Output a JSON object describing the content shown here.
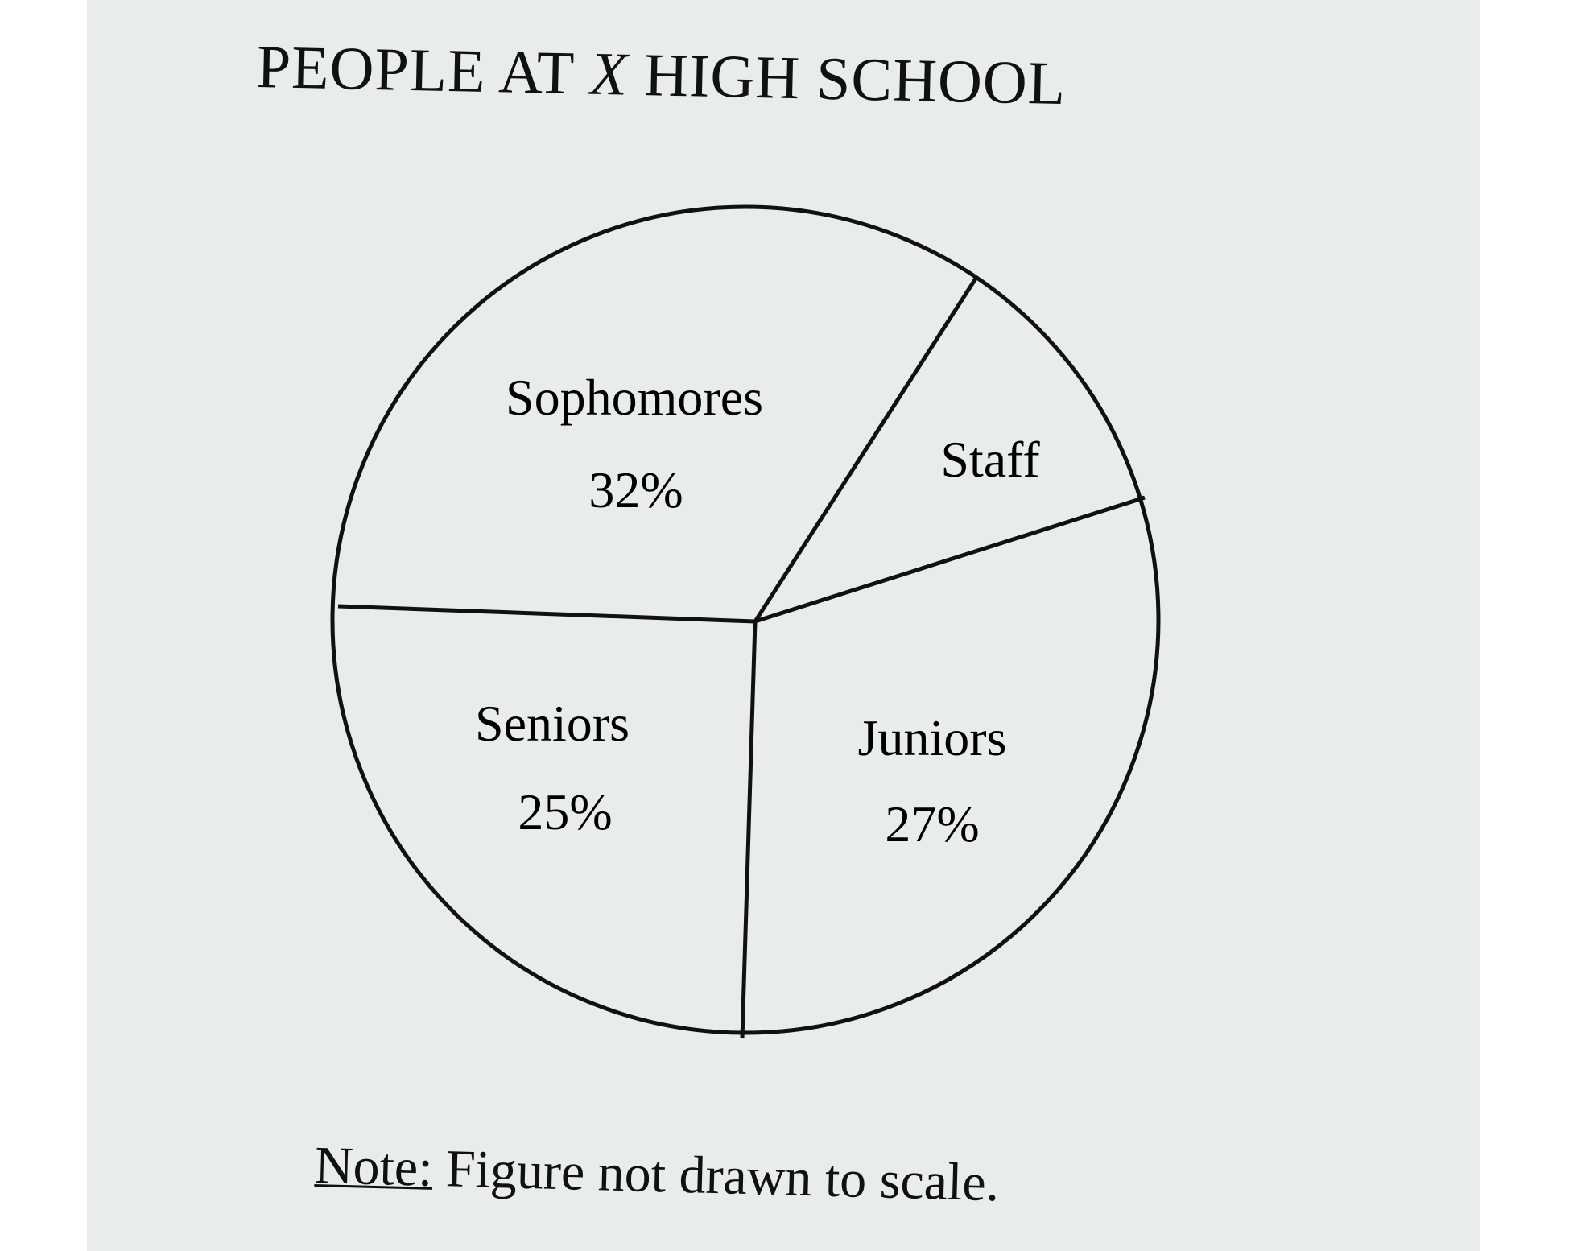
{
  "title": {
    "part1": "PEOPLE AT",
    "variable": "X",
    "part2": "HIGH SCHOOL"
  },
  "chart_data": {
    "type": "pie",
    "title": "PEOPLE AT X HIGH SCHOOL",
    "slices": [
      {
        "label": "Sophomores",
        "value_label": "32%",
        "value": 32
      },
      {
        "label": "Staff",
        "value_label": "",
        "value": null
      },
      {
        "label": "Juniors",
        "value_label": "27%",
        "value": 27
      },
      {
        "label": "Seniors",
        "value_label": "25%",
        "value": 25
      }
    ],
    "legend": "none"
  },
  "note": {
    "label": "Note:",
    "text": " Figure not drawn to scale."
  },
  "colors": {
    "background": "#e9ecec",
    "ink": "#111111"
  }
}
